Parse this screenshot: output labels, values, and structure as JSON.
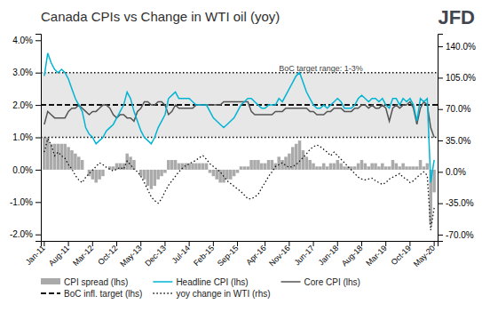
{
  "chart_data": {
    "type": "line",
    "title": "Canada CPIs vs Change in WTI oil (yoy)",
    "categories": [
      "Jan-11",
      null,
      null,
      null,
      null,
      null,
      null,
      "Aug-11",
      null,
      null,
      null,
      null,
      null,
      null,
      "Mar-12",
      null,
      null,
      null,
      null,
      null,
      null,
      "Oct-12",
      null,
      null,
      null,
      null,
      null,
      null,
      "May-13",
      null,
      null,
      null,
      null,
      null,
      null,
      "Dec-13",
      null,
      null,
      null,
      null,
      null,
      null,
      "Jul-14",
      null,
      null,
      null,
      null,
      null,
      null,
      "Feb-15",
      null,
      null,
      null,
      null,
      null,
      null,
      "Sep-15",
      null,
      null,
      null,
      null,
      null,
      null,
      null,
      "Apr-16",
      null,
      null,
      null,
      null,
      null,
      null,
      "Nov-16",
      null,
      null,
      null,
      null,
      null,
      null,
      "Jun-17",
      null,
      null,
      null,
      null,
      null,
      null,
      "Jan-18",
      null,
      null,
      null,
      null,
      null,
      null,
      "Aug-18",
      null,
      null,
      null,
      null,
      null,
      null,
      "Mar-19",
      null,
      null,
      null,
      null,
      null,
      null,
      "Oct-19",
      null,
      null,
      null,
      null,
      null,
      null,
      "May-20"
    ],
    "series": [
      {
        "name": "CPI spread (lhs)",
        "type": "bar",
        "color": "#aaaaaa",
        "values": [
          0.01,
          0.01,
          0.008,
          0.008,
          0.008,
          0.008,
          0.008,
          0.007,
          0.006,
          0.005,
          0.004,
          0.003,
          0.0,
          -0.002,
          -0.003,
          -0.004,
          -0.003,
          -0.002,
          0.0,
          0.001,
          0.001,
          0.002,
          0.002,
          0.002,
          0.005,
          0.004,
          0.003,
          0.0,
          -0.002,
          -0.003,
          -0.005,
          -0.006,
          -0.005,
          -0.003,
          -0.002,
          -0.001,
          0.003,
          0.003,
          0.003,
          0.002,
          0.002,
          0.002,
          0.002,
          0.002,
          0.002,
          0.002,
          0.002,
          0.002,
          -0.001,
          -0.002,
          -0.003,
          -0.004,
          -0.004,
          -0.003,
          -0.003,
          -0.002,
          -0.001,
          0.001,
          0.001,
          0.001,
          0.003,
          0.003,
          0.003,
          0.002,
          0.002,
          0.003,
          0.003,
          0.002,
          0.004,
          0.003,
          0.004,
          0.005,
          0.007,
          0.008,
          0.009,
          0.006,
          0.004,
          0.003,
          0.002,
          0.001,
          0.001,
          0.002,
          0.001,
          0.002,
          0.002,
          0.003,
          0.002,
          0.001,
          0.001,
          0.001,
          0.001,
          0.002,
          0.003,
          0.002,
          0.001,
          0.002,
          0.002,
          0.001,
          0.002,
          0.001,
          0.001,
          0.003,
          0.002,
          0.001,
          0.002,
          0.001,
          0.001,
          0.001,
          0.001,
          0.003,
          0.001,
          0.002,
          -0.017,
          -0.007
        ]
      },
      {
        "name": "Headline CPI (lhs)",
        "type": "line",
        "color": "#00b4d4",
        "line_style": "solid",
        "values": [
          0.029,
          0.036,
          0.033,
          0.031,
          0.03,
          0.031,
          0.03,
          0.028,
          0.025,
          0.022,
          0.02,
          0.018,
          0.013,
          0.011,
          0.01,
          0.008,
          0.009,
          0.01,
          0.012,
          0.013,
          0.014,
          0.016,
          0.018,
          0.02,
          0.024,
          0.022,
          0.018,
          0.015,
          0.012,
          0.01,
          0.009,
          0.008,
          0.01,
          0.013,
          0.015,
          0.017,
          0.022,
          0.023,
          0.024,
          0.022,
          0.022,
          0.022,
          0.022,
          0.021,
          0.02,
          0.02,
          0.02,
          0.02,
          0.018,
          0.016,
          0.015,
          0.014,
          0.013,
          0.014,
          0.015,
          0.016,
          0.018,
          0.02,
          0.021,
          0.022,
          0.022,
          0.021,
          0.02,
          0.019,
          0.019,
          0.02,
          0.02,
          0.02,
          0.022,
          0.021,
          0.023,
          0.025,
          0.027,
          0.029,
          0.03,
          0.027,
          0.024,
          0.022,
          0.02,
          0.019,
          0.019,
          0.02,
          0.019,
          0.02,
          0.021,
          0.022,
          0.021,
          0.019,
          0.019,
          0.019,
          0.02,
          0.022,
          0.023,
          0.022,
          0.021,
          0.022,
          0.022,
          0.021,
          0.022,
          0.02,
          0.019,
          0.022,
          0.022,
          0.02,
          0.022,
          0.021,
          0.022,
          0.02,
          0.015,
          0.022,
          0.021,
          0.022,
          -0.004,
          0.003
        ]
      },
      {
        "name": "Core CPI (lhs)",
        "type": "line",
        "color": "#555555",
        "line_style": "solid",
        "values": [
          0.014,
          0.018,
          0.017,
          0.016,
          0.016,
          0.016,
          0.016,
          0.018,
          0.019,
          0.019,
          0.02,
          0.019,
          0.018,
          0.017,
          0.018,
          0.018,
          0.019,
          0.02,
          0.02,
          0.019,
          0.017,
          0.016,
          0.017,
          0.017,
          0.016,
          0.016,
          0.015,
          0.018,
          0.019,
          0.021,
          0.021,
          0.02,
          0.02,
          0.021,
          0.021,
          0.02,
          0.017,
          0.018,
          0.02,
          0.019,
          0.019,
          0.019,
          0.019,
          0.019,
          0.02,
          0.02,
          0.02,
          0.02,
          0.02,
          0.02,
          0.02,
          0.02,
          0.021,
          0.021,
          0.021,
          0.021,
          0.021,
          0.021,
          0.021,
          0.021,
          0.018,
          0.017,
          0.017,
          0.017,
          0.017,
          0.017,
          0.017,
          0.018,
          0.018,
          0.018,
          0.019,
          0.019,
          0.019,
          0.019,
          0.019,
          0.019,
          0.019,
          0.018,
          0.018,
          0.017,
          0.017,
          0.017,
          0.018,
          0.018,
          0.019,
          0.019,
          0.019,
          0.018,
          0.018,
          0.018,
          0.019,
          0.019,
          0.02,
          0.02,
          0.019,
          0.02,
          0.019,
          0.019,
          0.02,
          0.019,
          0.015,
          0.019,
          0.02,
          0.019,
          0.02,
          0.02,
          0.021,
          0.019,
          0.014,
          0.019,
          0.021,
          0.02,
          0.013,
          0.01
        ]
      },
      {
        "name": "yoy change in WTI (rhs)",
        "type": "line",
        "color": "#111111",
        "line_style": "dotted",
        "axis": "y2",
        "values": [
          0.22,
          0.37,
          0.3,
          0.18,
          0.22,
          0.18,
          0.15,
          0.08,
          0.03,
          -0.04,
          -0.09,
          -0.12,
          -0.06,
          -0.02,
          0.02,
          0.06,
          0.1,
          0.08,
          0.05,
          0.03,
          0.01,
          0.03,
          0.05,
          0.03,
          0.12,
          0.08,
          0.03,
          0.0,
          -0.05,
          -0.12,
          -0.2,
          -0.28,
          -0.32,
          -0.35,
          -0.3,
          -0.22,
          -0.15,
          -0.1,
          -0.05,
          0.0,
          0.04,
          0.07,
          0.09,
          0.11,
          0.13,
          0.16,
          0.18,
          0.14,
          0.09,
          0.06,
          0.03,
          0.0,
          -0.05,
          -0.1,
          -0.13,
          -0.16,
          -0.19,
          -0.22,
          -0.26,
          -0.3,
          -0.3,
          -0.28,
          -0.25,
          -0.18,
          -0.12,
          -0.05,
          0.0,
          0.06,
          0.08,
          0.1,
          0.07,
          0.05,
          0.06,
          0.08,
          0.12,
          0.16,
          0.2,
          0.25,
          0.28,
          0.3,
          0.28,
          0.25,
          0.22,
          0.18,
          0.22,
          0.18,
          0.14,
          0.1,
          0.06,
          0.02,
          -0.02,
          -0.06,
          -0.08,
          -0.09,
          -0.08,
          -0.07,
          -0.1,
          -0.12,
          -0.14,
          -0.12,
          -0.08,
          -0.06,
          -0.04,
          -0.02,
          -0.06,
          -0.08,
          -0.12,
          -0.1,
          -0.06,
          -0.03,
          0.0,
          -0.04,
          -0.65,
          -0.4
        ]
      }
    ],
    "target": {
      "name": "BoC infl. target (lhs)",
      "low": 0.01,
      "mid": 0.02,
      "high": 0.03,
      "color": "#111111",
      "band_color": "#d3d3d3",
      "line_style": "dashed"
    },
    "annotations": [
      "BoC target range: 1-3%",
      "JFD"
    ],
    "ylim": [
      -0.022,
      0.042
    ],
    "yticks": [
      {
        "value": -0.02,
        "label": "-2.0%"
      },
      {
        "value": -0.01,
        "label": "-1.0%"
      },
      {
        "value": 0.0,
        "label": "0.0%"
      },
      {
        "value": 0.01,
        "label": "1.0%"
      },
      {
        "value": 0.02,
        "label": "2.0%"
      },
      {
        "value": 0.03,
        "label": "3.0%"
      },
      {
        "value": 0.04,
        "label": "4.0%"
      }
    ],
    "y2lim": [
      -0.77,
      1.54
    ],
    "y2ticks": [
      {
        "value": -0.7,
        "label": "-70.0%"
      },
      {
        "value": -0.35,
        "label": "-35.0%"
      },
      {
        "value": 0.0,
        "label": "0.0%"
      },
      {
        "value": 0.35,
        "label": "35.0%"
      },
      {
        "value": 0.7,
        "label": "70.0%"
      },
      {
        "value": 1.05,
        "label": "105.0%"
      },
      {
        "value": 1.4,
        "label": "140.0%"
      }
    ],
    "grid": false,
    "legend": "bottom"
  }
}
